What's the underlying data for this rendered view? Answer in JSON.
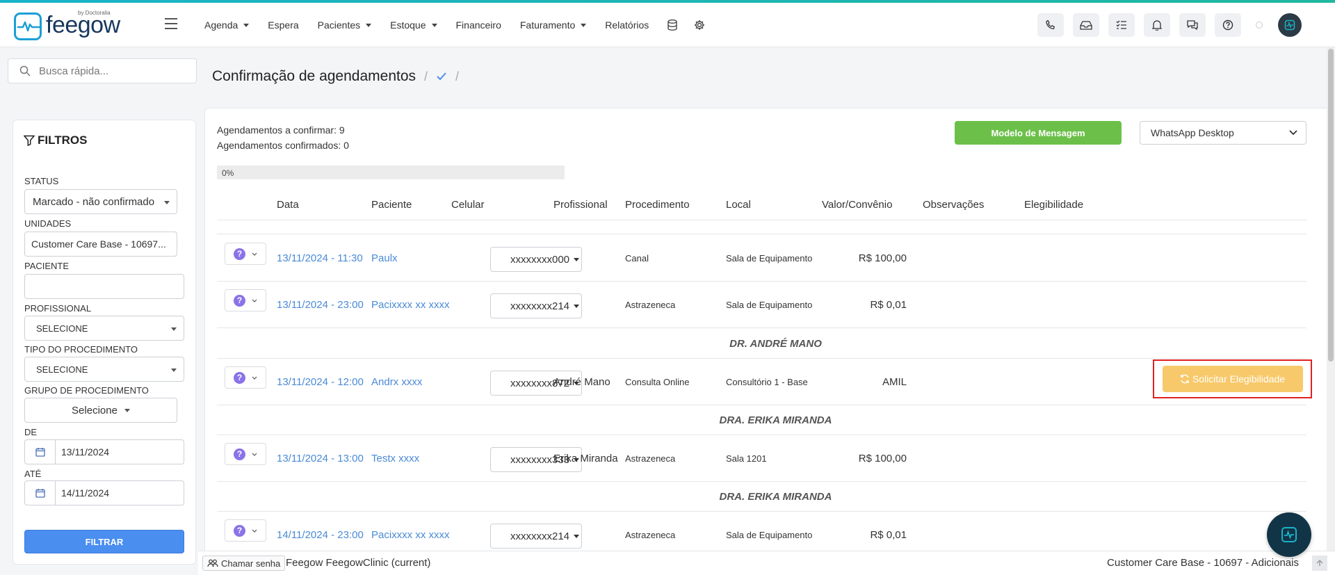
{
  "app": {
    "logo_text": "feegow",
    "logo_byline": "by Doctoralia",
    "brand_color": "#1a9fd6"
  },
  "nav": {
    "menu": [
      {
        "label": "Agenda",
        "has_dropdown": true
      },
      {
        "label": "Espera",
        "has_dropdown": false
      },
      {
        "label": "Pacientes",
        "has_dropdown": true
      },
      {
        "label": "Estoque",
        "has_dropdown": true
      },
      {
        "label": "Financeiro",
        "has_dropdown": false
      },
      {
        "label": "Faturamento",
        "has_dropdown": true
      },
      {
        "label": "Relatórios",
        "has_dropdown": false
      }
    ],
    "menu_icons": [
      "database-icon",
      "gear-icon"
    ],
    "right_icons": [
      "phone-icon",
      "inbox-icon",
      "checklist-icon",
      "bell-icon",
      "chat-icon",
      "help-icon"
    ]
  },
  "search": {
    "placeholder": "Busca rápida..."
  },
  "filters": {
    "title": "FILTROS",
    "status_label": "STATUS",
    "status_value": "Marcado - não confirmado",
    "unidades_label": "UNIDADES",
    "unidades_value": "Customer Care Base - 10697...",
    "paciente_label": "PACIENTE",
    "paciente_value": "",
    "profissional_label": "PROFISSIONAL",
    "profissional_value": "SELECIONE",
    "tipo_label": "TIPO DO PROCEDIMENTO",
    "tipo_value": "SELECIONE",
    "grupo_label": "GRUPO DE PROCEDIMENTO",
    "grupo_value": "Selecione",
    "de_label": "DE",
    "de_value": "13/11/2024",
    "ate_label": "ATÉ",
    "ate_value": "14/11/2024",
    "filter_button": "FILTRAR"
  },
  "page": {
    "title": "Confirmação de agendamentos",
    "breadcrumb_sep": "/"
  },
  "summary": {
    "to_confirm": "Agendamentos a confirmar: 9",
    "confirmed": "Agendamentos confirmados: 0",
    "model_button": "Modelo de Mensagem",
    "channel_select": "WhatsApp Desktop",
    "progress_label": "0%",
    "progress_percent": 0
  },
  "table": {
    "headers": {
      "data": "Data",
      "paciente": "Paciente",
      "celular": "Celular",
      "profissional": "Profissional",
      "procedimento": "Procedimento",
      "local": "Local",
      "valor": "Valor/Convênio",
      "observacoes": "Observações",
      "elegibilidade": "Elegibilidade"
    },
    "rows": [
      {
        "data": "13/11/2024 - 11:30",
        "paciente": "Paulx",
        "celular": "xxxxxxxx000",
        "profissional": "",
        "procedimento": "Canal",
        "local": "Sala de Equipamento",
        "valor": "R$ 100,00"
      },
      {
        "data": "13/11/2024 - 23:00",
        "paciente": "Pacixxxx xx xxxx",
        "celular": "xxxxxxxx214",
        "profissional": "",
        "procedimento": "Astrazeneca",
        "local": "Sala de Equipamento",
        "valor": "R$ 0,01"
      },
      {
        "group": "DR. ANDRÉ MANO"
      },
      {
        "data": "13/11/2024 - 12:00",
        "paciente": "Andrx xxxx",
        "celular": "xxxxxxxx872",
        "profissional": "André Mano",
        "procedimento": "Consulta Online",
        "local": "Consultório 1 - Base",
        "valor": "AMIL",
        "elegibilidade": "Solicitar Elegibilidade"
      },
      {
        "group": "DRA. ERIKA MIRANDA"
      },
      {
        "data": "13/11/2024 - 13:00",
        "paciente": "Testx xxxx",
        "celular": "xxxxxxxx333",
        "profissional": "Erika Miranda",
        "procedimento": "Astrazeneca",
        "local": "Sala 1201",
        "valor": "R$ 100,00"
      },
      {
        "group": "DRA. ERIKA MIRANDA"
      },
      {
        "data": "14/11/2024 - 23:00",
        "paciente": "Pacixxxx xx xxxx",
        "celular": "xxxxxxxx214",
        "profissional": "",
        "procedimento": "Astrazeneca",
        "local": "Sala de Equipamento",
        "valor": "R$ 0,01"
      }
    ]
  },
  "footer": {
    "call_button": "Chamar senha",
    "left_text": "Feegow FeegowClinic (current)",
    "right_text": "Customer Care Base - 10697 - Adicionais"
  }
}
